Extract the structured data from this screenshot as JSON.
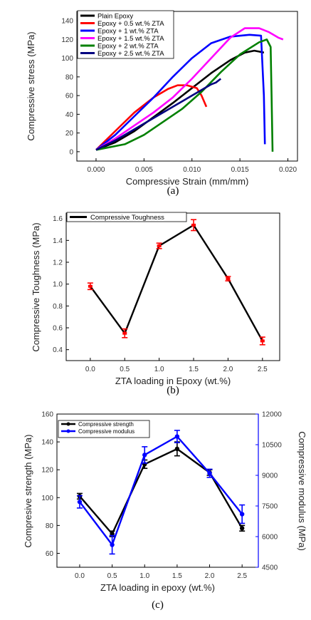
{
  "chart_data": [
    {
      "type": "line",
      "panel_label": "(a)",
      "xlabel": "Compressive Strain (mm/mm)",
      "ylabel": "Compressive stress (MPa)",
      "xlim": [
        -0.002,
        0.021
      ],
      "ylim": [
        -10,
        150
      ],
      "xticks": [
        "0.000",
        "0.005",
        "0.010",
        "0.015",
        "0.020"
      ],
      "yticks": [
        "0",
        "20",
        "40",
        "60",
        "80",
        "100",
        "120",
        "140"
      ],
      "legend_position": "top-left",
      "series": [
        {
          "name": "Plain Epoxy",
          "color": "#000000",
          "x": [
            0.0,
            0.002,
            0.004,
            0.006,
            0.008,
            0.01,
            0.012,
            0.014,
            0.0155,
            0.0165,
            0.017,
            0.0175
          ],
          "y": [
            2,
            10,
            22,
            37,
            52,
            68,
            84,
            98,
            106,
            108,
            107,
            106
          ]
        },
        {
          "name": "Epoxy + 0.5 wt.% ZTA",
          "color": "#ff0000",
          "x": [
            0.0,
            0.002,
            0.004,
            0.006,
            0.0075,
            0.0085,
            0.0095,
            0.0105,
            0.011,
            0.0115
          ],
          "y": [
            2,
            22,
            42,
            58,
            67,
            71,
            71,
            68,
            60,
            48
          ]
        },
        {
          "name": "Epoxy + 1 wt.% ZTA",
          "color": "#0000ff",
          "x": [
            0.0,
            0.002,
            0.004,
            0.006,
            0.008,
            0.01,
            0.012,
            0.014,
            0.016,
            0.0172,
            0.0175,
            0.0176
          ],
          "y": [
            2,
            18,
            38,
            58,
            80,
            100,
            116,
            123,
            125,
            124,
            60,
            8
          ]
        },
        {
          "name": "Epoxy + 1.5 wt.% ZTA",
          "color": "#ff00ff",
          "x": [
            0.0,
            0.002,
            0.004,
            0.006,
            0.008,
            0.01,
            0.012,
            0.014,
            0.0155,
            0.017,
            0.018,
            0.019,
            0.0195
          ],
          "y": [
            2,
            14,
            28,
            42,
            58,
            78,
            100,
            122,
            132,
            132,
            128,
            122,
            120
          ]
        },
        {
          "name": "Epoxy + 2 wt.% ZTA",
          "color": "#008000",
          "x": [
            0.0,
            0.003,
            0.005,
            0.007,
            0.009,
            0.011,
            0.013,
            0.015,
            0.017,
            0.0178,
            0.0182,
            0.0183,
            0.0184
          ],
          "y": [
            2,
            8,
            18,
            32,
            46,
            64,
            85,
            104,
            117,
            120,
            112,
            60,
            0
          ]
        },
        {
          "name": "Epoxy + 2.5 wt.% ZTA",
          "color": "#000080",
          "x": [
            0.0,
            0.002,
            0.004,
            0.006,
            0.008,
            0.01,
            0.011,
            0.012,
            0.0125,
            0.013
          ],
          "y": [
            2,
            12,
            24,
            36,
            48,
            60,
            66,
            72,
            74,
            78
          ]
        }
      ]
    },
    {
      "type": "line",
      "panel_label": "(b)",
      "xlabel": "ZTA loading in Epoxy (wt.%)",
      "ylabel": "Compressive Toughness (MPa)",
      "xlim": [
        -0.35,
        2.75
      ],
      "ylim": [
        0.3,
        1.65
      ],
      "xticks": [
        "0.0",
        "0.5",
        "1.0",
        "1.5",
        "2.0",
        "2.5"
      ],
      "yticks": [
        "0.4",
        "0.6",
        "0.8",
        "1.0",
        "1.2",
        "1.4",
        "1.6"
      ],
      "legend_position": "top-left",
      "series": [
        {
          "name": "Compressive Toughness",
          "color": "#000000",
          "error_color": "#ff0000",
          "x": [
            0.0,
            0.5,
            1.0,
            1.5,
            2.0,
            2.5
          ],
          "y": [
            0.98,
            0.55,
            1.35,
            1.54,
            1.05,
            0.48
          ],
          "error": [
            0.03,
            0.04,
            0.025,
            0.05,
            0.02,
            0.035
          ]
        }
      ]
    },
    {
      "type": "line",
      "panel_label": "(c)",
      "xlabel": "ZTA loading in epoxy (wt.%)",
      "ylabel": "Compresive strength (MPa)",
      "y2label": "Compressive modulus (MPa)",
      "xlim": [
        -0.35,
        2.75
      ],
      "ylim": [
        50,
        160
      ],
      "y2lim": [
        4500,
        12000
      ],
      "xticks": [
        "0.0",
        "0.5",
        "1.0",
        "1.5",
        "2.0",
        "2.5"
      ],
      "yticks": [
        "60",
        "80",
        "100",
        "120",
        "140",
        "160"
      ],
      "y2ticks": [
        "4500",
        "6000",
        "7500",
        "9000",
        "10500",
        "12000"
      ],
      "legend_position": "top-left",
      "series": [
        {
          "name": "Compressive strength",
          "color": "#000000",
          "axis": "left",
          "x": [
            0.0,
            0.5,
            1.0,
            1.5,
            2.0,
            2.5
          ],
          "y": [
            101,
            74,
            124,
            135,
            118,
            78
          ],
          "error": [
            2,
            2,
            3,
            5,
            2,
            2
          ]
        },
        {
          "name": "Compressive modulus",
          "color": "#0000ff",
          "axis": "right",
          "x": [
            0.0,
            0.5,
            1.0,
            1.5,
            2.0,
            2.5
          ],
          "y": [
            7700,
            5600,
            10000,
            10900,
            9100,
            7100
          ],
          "error": [
            300,
            450,
            400,
            300,
            200,
            450
          ]
        }
      ]
    }
  ]
}
